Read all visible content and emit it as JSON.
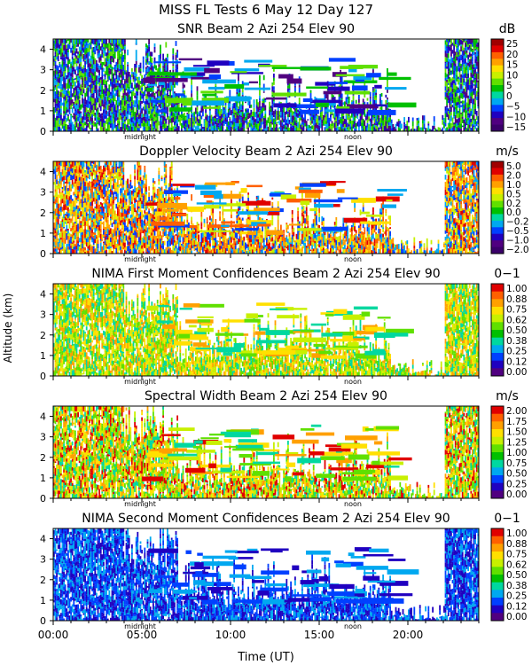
{
  "chart_data": {
    "type": "heatmap",
    "title": "MISS FL Tests   6 May 12 Day 127",
    "ylabel": "Altitude (km)",
    "xlabel": "Time (UT)",
    "xlim": [
      0,
      24
    ],
    "ylim": [
      0,
      4.5
    ],
    "x_ticks": [
      0,
      5,
      10,
      15,
      20
    ],
    "x_tick_labels": [
      "00:00",
      "05:00",
      "10:00",
      "15:00",
      "20:00"
    ],
    "y_tick_labels": [
      "0",
      "1",
      "2",
      "3",
      "4"
    ],
    "time_markers": [
      {
        "label": "midnight",
        "hour": 5.0
      },
      {
        "label": "noon",
        "hour": 17.0
      }
    ],
    "panels": [
      {
        "title": "SNR Beam 2 Azi 254 Elev 90",
        "unit": "dB",
        "colorbar": [
          "25",
          "20",
          "15",
          "10",
          "5",
          "0",
          "−5",
          "−10",
          "−15"
        ],
        "colors": [
          "#a00000",
          "#e00000",
          "#ff6000",
          "#ffa000",
          "#ffe000",
          "#c8f000",
          "#60e000",
          "#00c000",
          "#00d8a0",
          "#00a8f0",
          "#0040ff",
          "#2000c0",
          "#500080",
          "#3a006a"
        ],
        "dominant_colors": [
          "#60e000",
          "#00c000",
          "#00a8f0",
          "#0040ff",
          "#2000c0",
          "#500080"
        ]
      },
      {
        "title": "Doppler Velocity Beam 2 Azi 254 Elev 90",
        "unit": "m/s",
        "colorbar": [
          "5.0",
          "2.0",
          "1.0",
          "0.5",
          "0.2",
          "0.0",
          "−0.2",
          "−0.5",
          "−1.0",
          "−2.0"
        ],
        "colors": [
          "#a00000",
          "#e00000",
          "#ff6000",
          "#ffa000",
          "#ffe000",
          "#c8f000",
          "#60e000",
          "#00c000",
          "#00d8a0",
          "#00a8f0",
          "#0040ff",
          "#2000c0",
          "#500080",
          "#3a006a"
        ],
        "dominant_colors": [
          "#ff6000",
          "#ffa000",
          "#ffe000",
          "#c8f000",
          "#0040ff",
          "#00a8f0",
          "#e00000"
        ]
      },
      {
        "title": "NIMA First Moment Confidences Beam 2 Azi 254 Elev 90",
        "unit": "0−1",
        "colorbar": [
          "1.00",
          "0.88",
          "0.75",
          "0.62",
          "0.50",
          "0.38",
          "0.25",
          "0.12",
          "0.00"
        ],
        "colors": [
          "#e00000",
          "#ff6000",
          "#ffa000",
          "#ffe000",
          "#c8f000",
          "#60e000",
          "#00c000",
          "#00d8a0",
          "#00a8f0",
          "#0040ff",
          "#2000c0",
          "#500080"
        ],
        "dominant_colors": [
          "#ffe000",
          "#c8f000",
          "#60e000",
          "#00d8a0",
          "#ffa000"
        ]
      },
      {
        "title": "Spectral Width Beam 2 Azi 254 Elev 90",
        "unit": "m/s",
        "colorbar": [
          "2.00",
          "1.75",
          "1.50",
          "1.25",
          "1.00",
          "0.75",
          "0.50",
          "0.25",
          "0.00"
        ],
        "colors": [
          "#e00000",
          "#ff6000",
          "#ffa000",
          "#ffe000",
          "#c8f000",
          "#60e000",
          "#00c000",
          "#00d8a0",
          "#00a8f0",
          "#0040ff",
          "#2000c0",
          "#500080"
        ],
        "dominant_colors": [
          "#60e000",
          "#c8f000",
          "#ffe000",
          "#e00000",
          "#00d8a0",
          "#ffa000"
        ]
      },
      {
        "title": "NIMA Second Moment Confidences Beam 2 Azi 254 Elev 90",
        "unit": "0−1",
        "colorbar": [
          "1.00",
          "0.88",
          "0.75",
          "0.62",
          "0.50",
          "0.38",
          "0.25",
          "0.12",
          "0.00"
        ],
        "colors": [
          "#e00000",
          "#ff6000",
          "#ffa000",
          "#ffe000",
          "#c8f000",
          "#60e000",
          "#00c000",
          "#00d8a0",
          "#00a8f0",
          "#0040ff",
          "#2000c0",
          "#500080"
        ],
        "dominant_colors": [
          "#0040ff",
          "#2000c0",
          "#00a8f0"
        ]
      }
    ]
  }
}
